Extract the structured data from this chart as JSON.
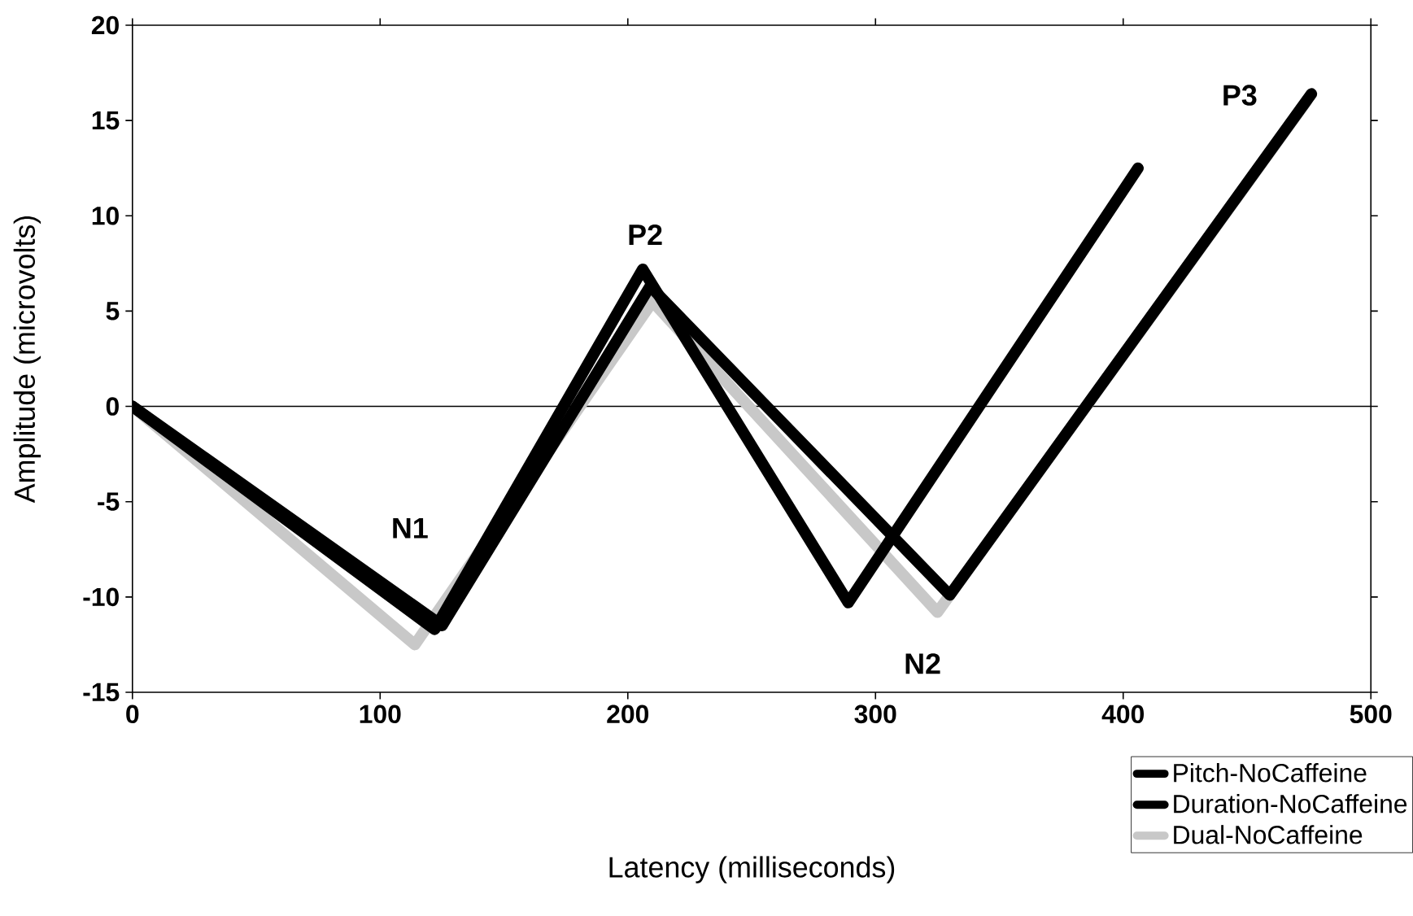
{
  "chart_data": {
    "type": "line",
    "xlabel": "Latency  (milliseconds)",
    "ylabel": "Amplitude (microvolts)",
    "xlim": [
      0,
      500
    ],
    "ylim": [
      -15,
      20
    ],
    "xticks": [
      0,
      100,
      200,
      300,
      400,
      500
    ],
    "yticks": [
      -15,
      -10,
      -5,
      0,
      5,
      10,
      15,
      20
    ],
    "grid": false,
    "legend": "bottom right",
    "marker": "none",
    "series": [
      {
        "name": "Pitch-NoCaffeine",
        "color": "#000000",
        "x": [
          0,
          122,
          206,
          289,
          406
        ],
        "values": [
          0,
          -11.7,
          7.2,
          -10.3,
          12.5
        ]
      },
      {
        "name": "Duration-NoCaffeine",
        "color": "#000000",
        "x": [
          0,
          125,
          209,
          330,
          476
        ],
        "values": [
          0,
          -11.5,
          6.3,
          -9.9,
          16.4
        ]
      },
      {
        "name": "Dual-NoCaffeine",
        "color": "#c8c8c8",
        "x": [
          0,
          114,
          210,
          325,
          474
        ],
        "values": [
          0,
          -12.5,
          5.5,
          -10.8,
          16
        ]
      }
    ],
    "ref_lines": [
      {
        "axis": "y",
        "value": 0,
        "color": "#000000"
      }
    ],
    "annotations": [
      "N1",
      "P2",
      "N2",
      "P3"
    ]
  }
}
